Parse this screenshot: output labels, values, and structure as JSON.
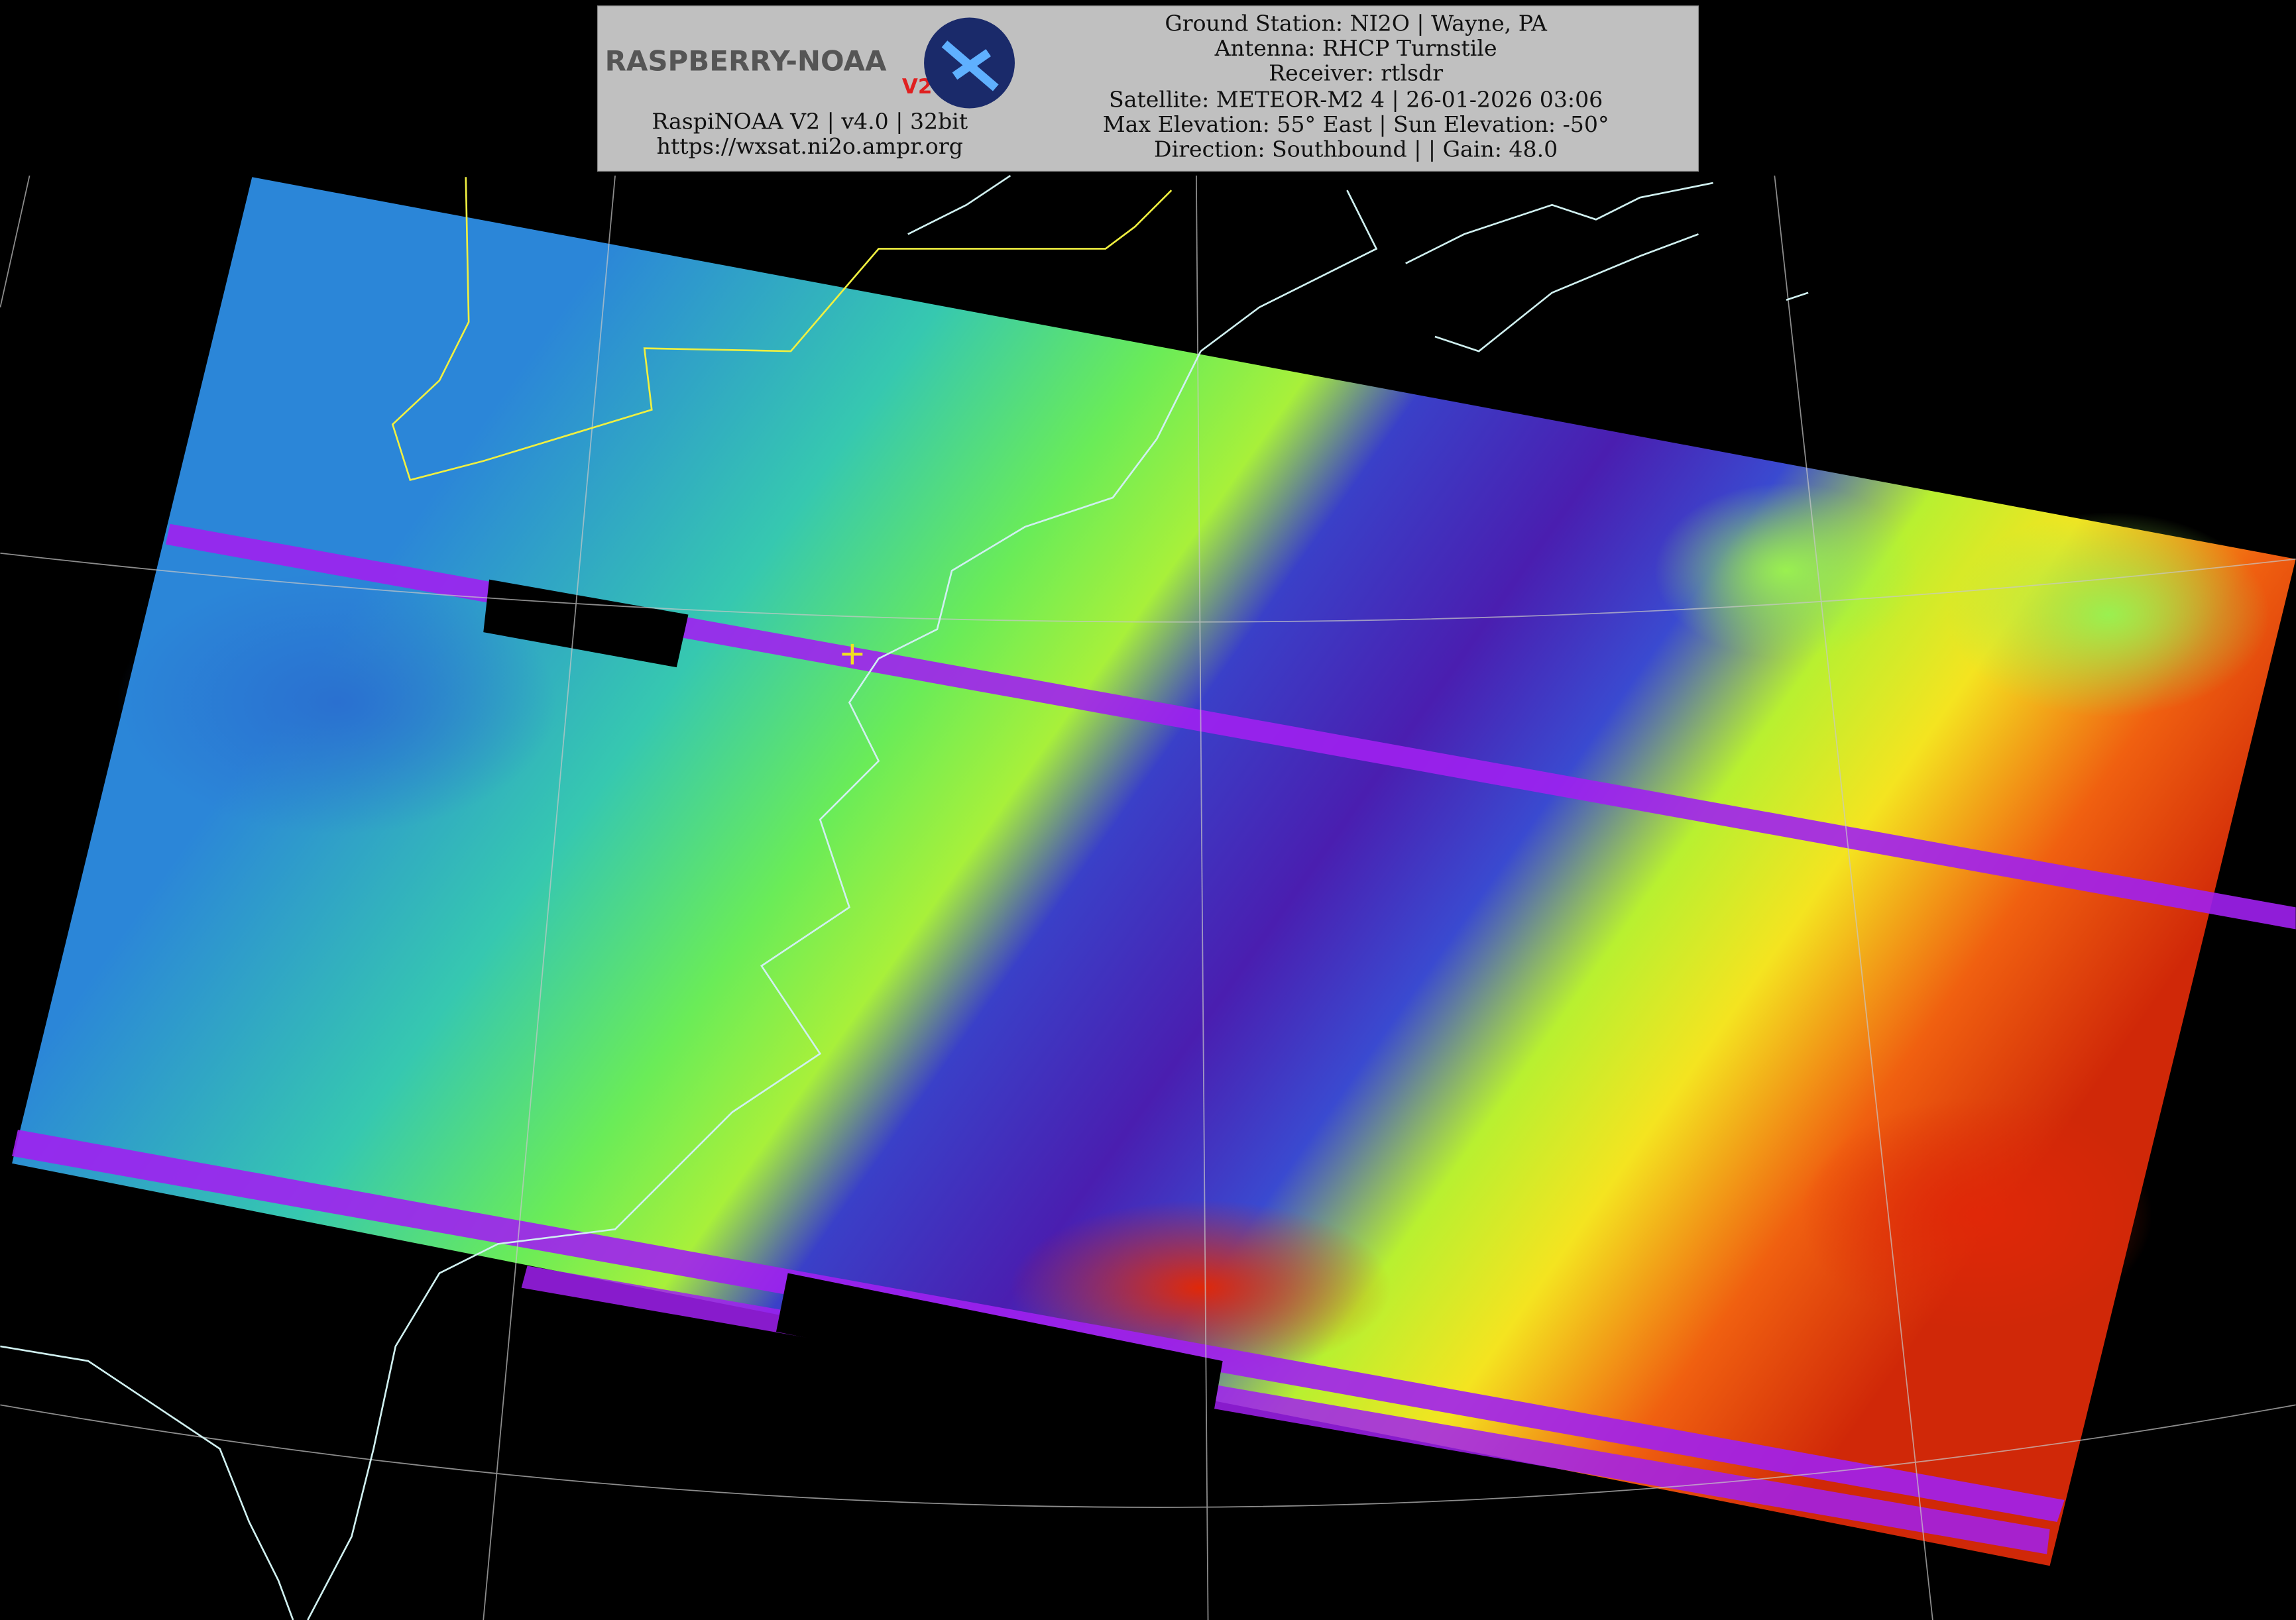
{
  "header": {
    "logo": "RASPBERRY-NOAA",
    "logo_badge": "V2",
    "software": "RaspiNOAA V2 | v4.0 | 32bit",
    "url": "https://wxsat.ni2o.ampr.org",
    "lines": [
      "Ground Station: NI2O | Wayne, PA",
      "Antenna: RHCP Turnstile",
      "Receiver: rtlsdr",
      "Satellite: METEOR-M2 4 | 26-01-2026 03:06",
      "Max Elevation: 55° East | Sun Elevation: -50°",
      "Direction: Southbound | | Gain: 48.0"
    ]
  }
}
